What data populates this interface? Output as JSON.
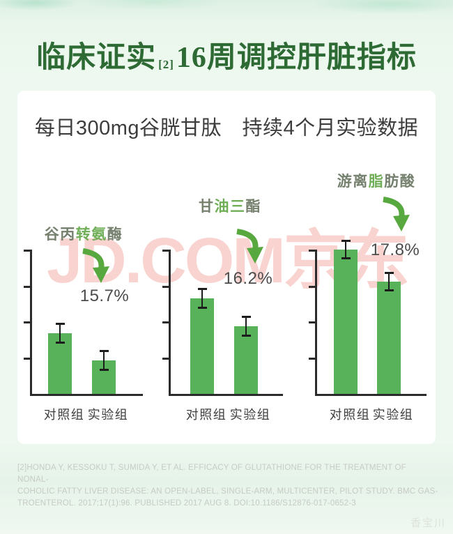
{
  "header": {
    "title_prefix": "临床证实",
    "title_ref": "[2]",
    "title_suffix": "16周调控肝脏指标",
    "subtitle": "每日300mg谷胱甘肽　持续4个月实验数据"
  },
  "watermarks": {
    "center": "JD.COM京东",
    "bottom_right": "香宝川"
  },
  "footer": {
    "lines": [
      "[2]HONDA Y, KESSOKU T, SUMIDA Y, ET AL. EFFICACY OF GLUTATHIONE FOR THE TREATMENT OF NONAL-",
      "COHOLIC FATTY LIVER DISEASE: AN OPEN-LABEL, SINGLE-ARM, MULTICENTER, PILOT STUDY. BMC GAS-",
      "TROENTEROL. 2017;17(1):96. PUBLISHED 2017 AUG 8. DOI:10.1186/S12876-017-0652-3"
    ]
  },
  "colors": {
    "page_bg": "#edf7ef",
    "card_bg": "#ffffff",
    "title_green": "#2d6a34",
    "subtitle_gray": "#3c3c3c",
    "bar_green": "#58b25a",
    "arrow_green": "#57a83e",
    "axis_dark": "#2b2b2b",
    "label_gray": "#75806e",
    "label_green": "#6fae56",
    "percent_gray": "#4b4b4b",
    "watermark_pink": "#f4aca4",
    "footer_gray": "#c6cbc5"
  },
  "chart_data": [
    {
      "type": "bar",
      "title": "谷丙转氨酶",
      "title_segments": [
        {
          "text": "谷丙",
          "color": "gray"
        },
        {
          "text": "转氨",
          "color": "green"
        },
        {
          "text": "酶",
          "color": "gray"
        }
      ],
      "categories": [
        "对照组",
        "实验组"
      ],
      "values_relative": [
        0.42,
        0.23
      ],
      "error_bars_relative": [
        0.065,
        0.065
      ],
      "decrease_label": "15.7%",
      "decrease_direction": "down",
      "y_axis": {
        "numeric_labels": false,
        "tick_count": 4
      }
    },
    {
      "type": "bar",
      "title": "甘油三酯",
      "title_segments": [
        {
          "text": "甘",
          "color": "gray"
        },
        {
          "text": "油三",
          "color": "green"
        },
        {
          "text": "酯",
          "color": "gray"
        }
      ],
      "categories": [
        "对照组",
        "实验组"
      ],
      "values_relative": [
        0.66,
        0.47
      ],
      "error_bars_relative": [
        0.065,
        0.065
      ],
      "decrease_label": "16.2%",
      "decrease_direction": "down",
      "y_axis": {
        "numeric_labels": false,
        "tick_count": 4
      }
    },
    {
      "type": "bar",
      "title": "游离脂肪酸",
      "title_segments": [
        {
          "text": "游离",
          "color": "gray"
        },
        {
          "text": "脂",
          "color": "green"
        },
        {
          "text": "肪酸",
          "color": "gray"
        }
      ],
      "categories": [
        "对照组",
        "实验组"
      ],
      "values_relative": [
        1.0,
        0.78
      ],
      "error_bars_relative": [
        0.06,
        0.06
      ],
      "decrease_label": "17.8%",
      "decrease_direction": "down",
      "y_axis": {
        "numeric_labels": false,
        "tick_count": 4
      }
    }
  ]
}
